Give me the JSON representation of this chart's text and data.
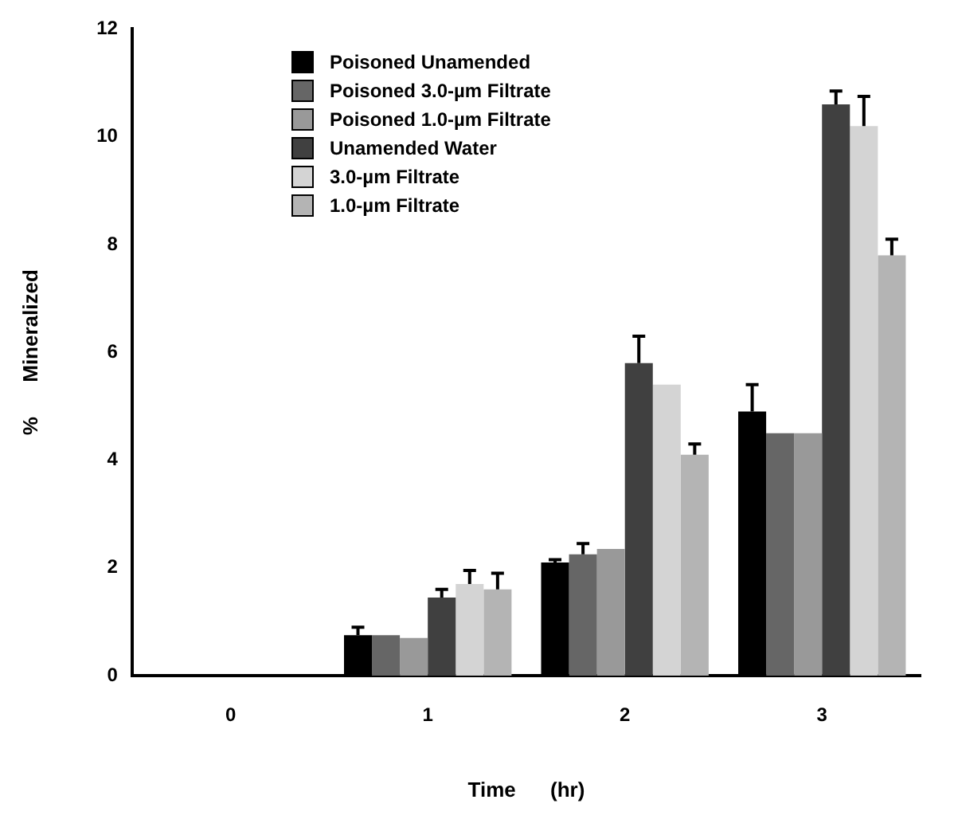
{
  "chart_data": {
    "type": "bar",
    "xlabel": "Time      (hr)",
    "ylabel": "%      Mineralized",
    "categories": [
      "0",
      "1",
      "2",
      "3"
    ],
    "series": [
      {
        "name": "Poisoned Unamended",
        "color": "#000000",
        "values": [
          0,
          0.75,
          2.1,
          4.9
        ],
        "errors": [
          null,
          [
            0.75,
            0.9
          ],
          [
            2.1,
            2.15
          ],
          [
            4.9,
            5.4
          ]
        ]
      },
      {
        "name": "Poisoned 3.0-µm Filtrate",
        "color": "#666666",
        "values": [
          0,
          0.75,
          2.25,
          4.5
        ],
        "errors": [
          null,
          null,
          [
            2.25,
            2.45
          ],
          null
        ]
      },
      {
        "name": "Poisoned 1.0-µm Filtrate",
        "color": "#999999",
        "values": [
          0,
          0.7,
          2.35,
          4.5
        ],
        "errors": [
          null,
          null,
          null,
          null
        ]
      },
      {
        "name": "Unamended Water",
        "color": "#404040",
        "values": [
          0,
          1.45,
          5.8,
          10.6
        ],
        "errors": [
          null,
          [
            1.45,
            1.6
          ],
          [
            5.8,
            6.3
          ],
          [
            10.6,
            10.85
          ]
        ]
      },
      {
        "name": "3.0-µm Filtrate",
        "color": "#d4d4d4",
        "values": [
          0,
          1.7,
          5.4,
          10.2
        ],
        "errors": [
          null,
          [
            1.7,
            1.95
          ],
          null,
          [
            10.2,
            10.75
          ]
        ]
      },
      {
        "name": "1.0-µm Filtrate",
        "color": "#b4b4b4",
        "values": [
          0,
          1.6,
          4.1,
          7.8
        ],
        "errors": [
          null,
          [
            1.6,
            1.9
          ],
          [
            4.1,
            4.3
          ],
          [
            7.8,
            8.1
          ]
        ]
      }
    ],
    "ylim": [
      0,
      12
    ],
    "yticks": [
      0,
      2,
      4,
      6,
      8,
      10,
      12
    ],
    "grid": false,
    "legend": "top left"
  }
}
